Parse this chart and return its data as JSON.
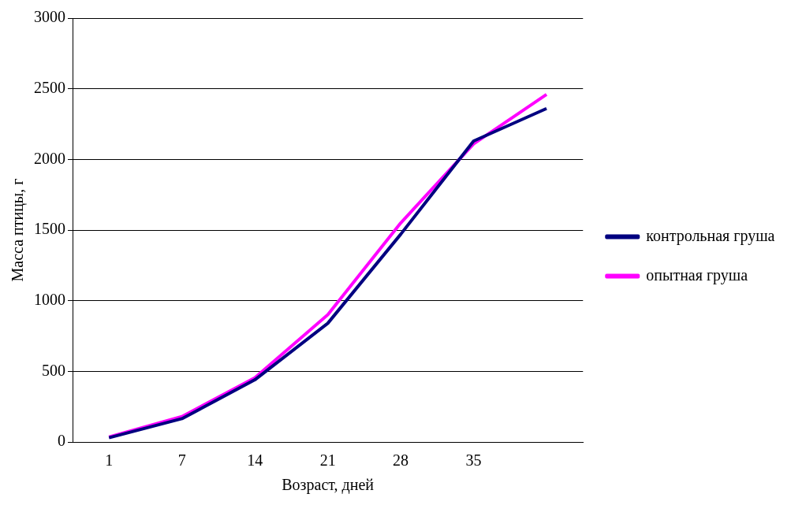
{
  "chart_data": {
    "type": "line",
    "xlabel": "Возраст, дней",
    "ylabel": "Масса птицы, г",
    "categories": [
      "1",
      "7",
      "14",
      "21",
      "28",
      "35",
      null
    ],
    "series": [
      {
        "name": "контрольная груша",
        "color": "#000080",
        "values": [
          30,
          165,
          440,
          840,
          1470,
          2130,
          2360
        ]
      },
      {
        "name": "опытная груша",
        "color": "#ff00ff",
        "values": [
          35,
          180,
          455,
          900,
          1550,
          2110,
          2460
        ]
      }
    ],
    "ylim": [
      0,
      3000
    ],
    "yticks": [
      0,
      500,
      1000,
      1500,
      2000,
      2500,
      3000
    ],
    "grid": "y",
    "legend": "right",
    "marker": "none",
    "line_style": "solid"
  }
}
